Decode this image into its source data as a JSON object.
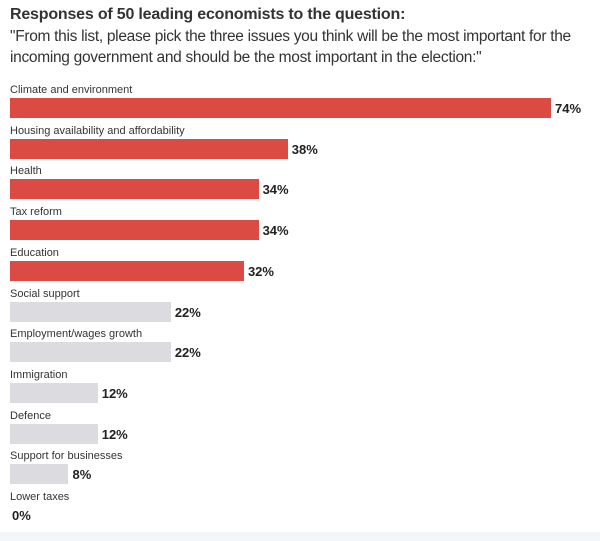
{
  "title": "Responses of 50 leading economists to the question:",
  "subtitle": "\"From this list, please pick the three issues you think will be the most important for the incoming government and should be the most important in the election:\"",
  "colors": {
    "highlight": "#dc4a44",
    "other": "#dcdce0"
  },
  "chart_data": {
    "type": "bar",
    "orientation": "horizontal",
    "title": "Responses of 50 leading economists to the question:",
    "categories": [
      "Climate and environment",
      "Housing availability and affordability",
      "Health",
      "Tax reform",
      "Education",
      "Social support",
      "Employment/wages growth",
      "Immigration",
      "Defence",
      "Support for businesses",
      "Lower taxes"
    ],
    "values": [
      74,
      38,
      34,
      34,
      32,
      22,
      22,
      12,
      12,
      8,
      0
    ],
    "labels": [
      "74%",
      "38%",
      "34%",
      "34%",
      "32%",
      "22%",
      "22%",
      "12%",
      "12%",
      "8%",
      "0%"
    ],
    "highlighted": [
      true,
      true,
      true,
      true,
      true,
      false,
      false,
      false,
      false,
      false,
      false
    ],
    "xlim": [
      0,
      74
    ],
    "unit": "%"
  }
}
